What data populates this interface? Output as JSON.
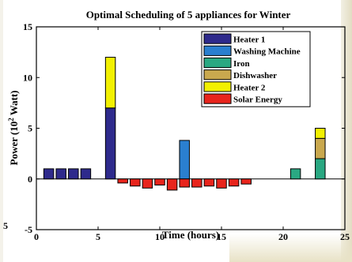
{
  "chart_data": {
    "type": "bar",
    "stacked": true,
    "title": "Optimal Scheduling of 5 appliances for Winter",
    "xlabel": "Time (hours)",
    "ylabel": "Power (10",
    "ylabel_sup": "2",
    "ylabel_unit": " Watt)",
    "xlim": [
      0,
      25
    ],
    "ylim": [
      -5,
      15
    ],
    "xticks": [
      "0",
      "5",
      "10",
      "15",
      "20",
      "25"
    ],
    "yticks": [
      "-5",
      "0",
      "5",
      "10",
      "15"
    ],
    "left_edge_fragment": "5",
    "grid": false,
    "legend_position": "top-right",
    "x": [
      1,
      2,
      3,
      4,
      5,
      6,
      7,
      8,
      9,
      10,
      11,
      12,
      13,
      14,
      15,
      16,
      17,
      18,
      19,
      20,
      21,
      22,
      23,
      24
    ],
    "series": [
      {
        "name": "Heater 1",
        "color": "#2e2a8c",
        "values": [
          1,
          1,
          1,
          1,
          0,
          7,
          0,
          0,
          0,
          0,
          0,
          0,
          0,
          0,
          0,
          0,
          0,
          0,
          0,
          0,
          0,
          0,
          0,
          0
        ]
      },
      {
        "name": "Washing Machine",
        "color": "#2a7fd0",
        "values": [
          0,
          0,
          0,
          0,
          0,
          0,
          0,
          0,
          0,
          0,
          0,
          3.8,
          0,
          0,
          0,
          0,
          0,
          0,
          0,
          0,
          0,
          0,
          0,
          0
        ]
      },
      {
        "name": "Iron",
        "color": "#2aa882",
        "values": [
          0,
          0,
          0,
          0,
          0,
          0,
          0,
          0,
          0,
          0,
          0,
          0,
          0,
          0,
          0,
          0,
          0,
          0,
          0,
          0,
          1,
          0,
          2,
          0
        ]
      },
      {
        "name": "Dishwasher",
        "color": "#c9a84e",
        "values": [
          0,
          0,
          0,
          0,
          0,
          0,
          0,
          0,
          0,
          0,
          0,
          0,
          0,
          0,
          0,
          0,
          0,
          0,
          0,
          0,
          0,
          0,
          2,
          0
        ]
      },
      {
        "name": "Heater 2",
        "color": "#f2f000",
        "values": [
          0,
          0,
          0,
          0,
          0,
          5,
          0,
          0,
          0,
          0,
          0,
          0,
          0,
          0,
          0,
          0,
          0,
          0,
          0,
          0,
          0,
          0,
          1,
          0
        ]
      },
      {
        "name": "Solar Energy",
        "color": "#e8241c",
        "values": [
          0,
          0,
          0,
          0,
          0,
          0,
          -0.4,
          -0.7,
          -0.9,
          -0.6,
          -1.1,
          -0.8,
          -0.8,
          -0.7,
          -0.9,
          -0.7,
          -0.5,
          0,
          0,
          0,
          0,
          0,
          0,
          0
        ]
      }
    ]
  }
}
